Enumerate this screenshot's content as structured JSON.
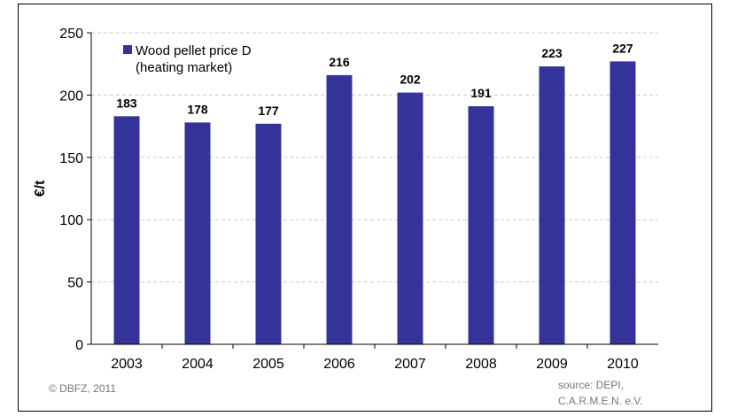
{
  "chart_data": {
    "type": "bar",
    "categories": [
      "2003",
      "2004",
      "2005",
      "2006",
      "2007",
      "2008",
      "2009",
      "2010"
    ],
    "series": [
      {
        "name": "Wood pellet price D (heating market)",
        "name_lines": [
          "Wood pellet price D",
          "(heating market)"
        ],
        "values": [
          183,
          178,
          177,
          216,
          202,
          191,
          223,
          227
        ],
        "color": "#333399"
      }
    ],
    "ylabel": "€/t",
    "ylim": [
      0,
      250
    ],
    "yticks": [
      0,
      50,
      100,
      150,
      200,
      250
    ],
    "grid": true,
    "legend": "top-left"
  },
  "footer": {
    "copyright": "© DBFZ, 2011",
    "source_line1": "source: DEPI,",
    "source_line2": "C.A.R.M.E.N. e.V."
  }
}
